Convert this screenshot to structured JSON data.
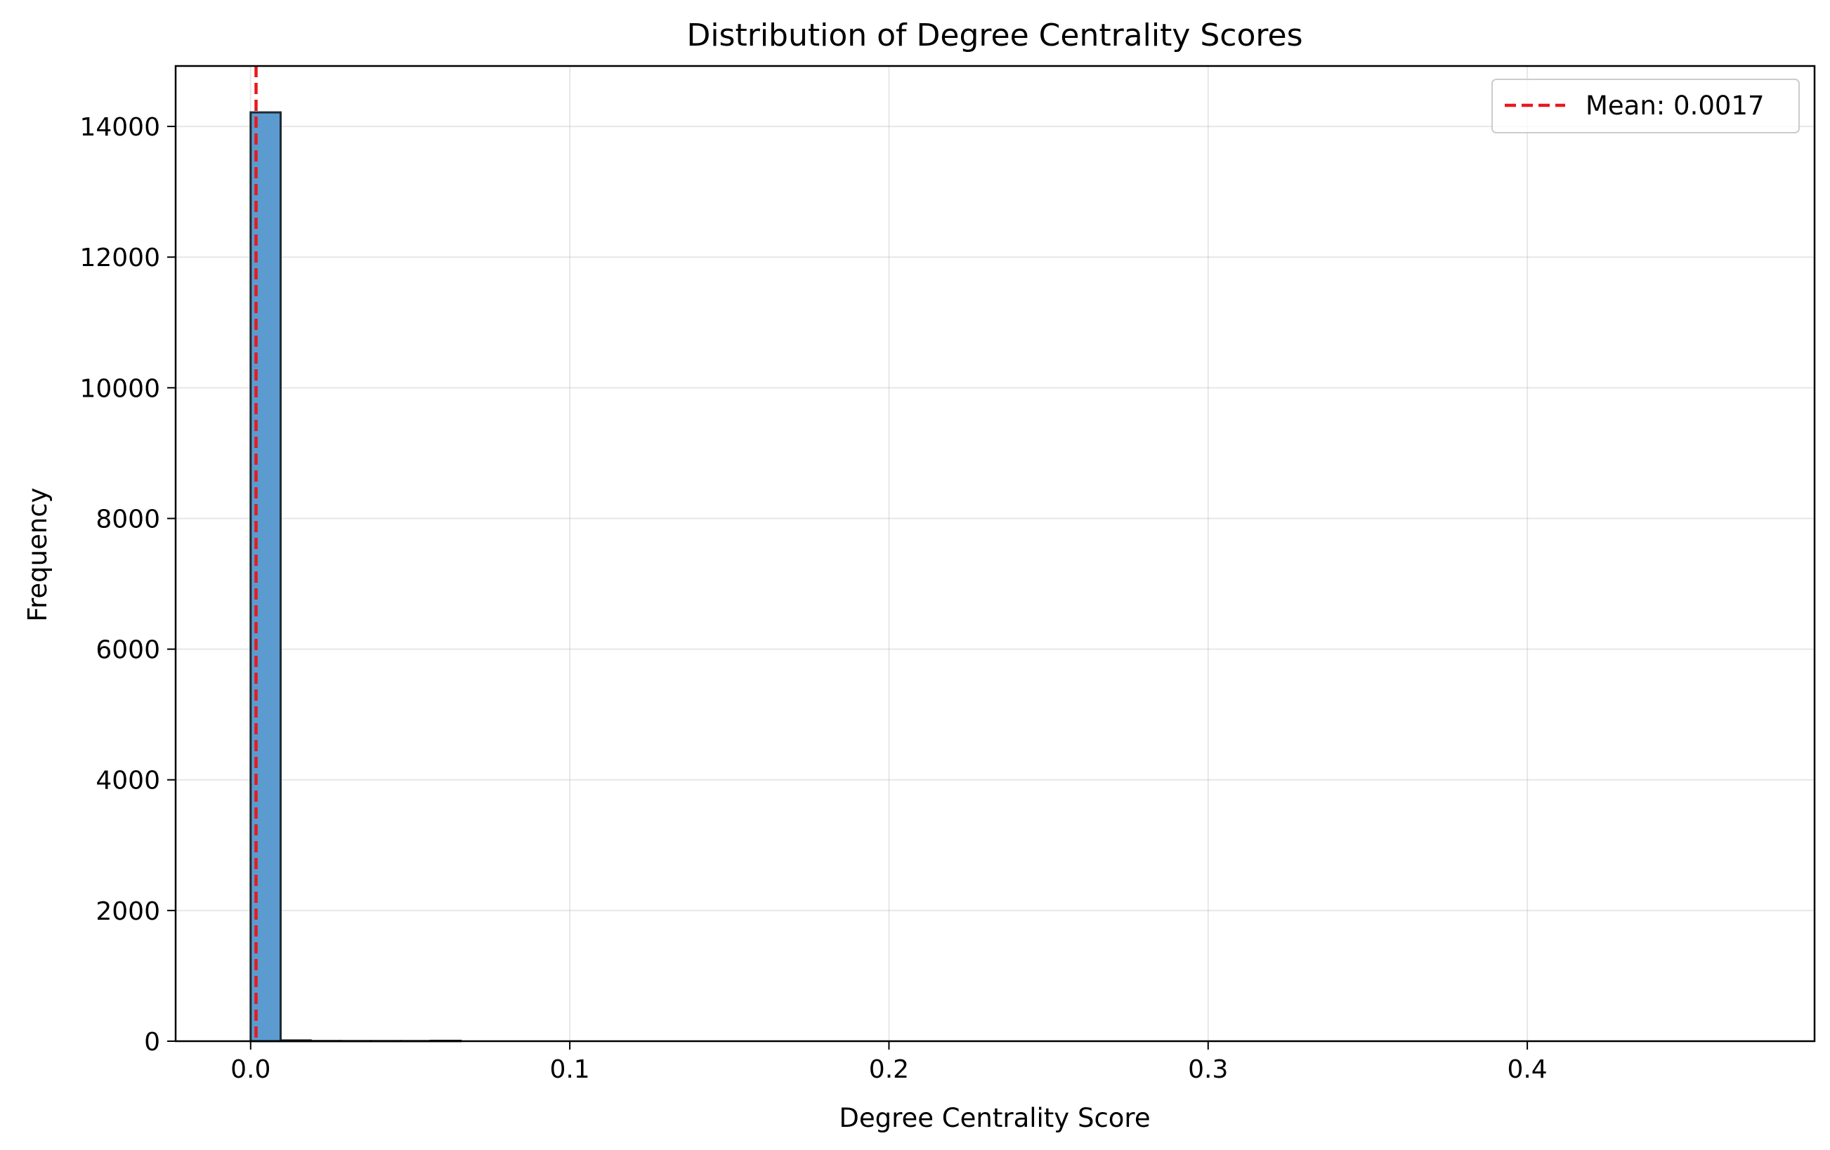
{
  "chart_data": {
    "type": "bar",
    "title": "Distribution of Degree Centrality Scores",
    "xlabel": "Degree Centrality Score",
    "ylabel": "Frequency",
    "xlim": [
      -0.0235,
      0.49
    ],
    "ylim": [
      0,
      14925
    ],
    "x_ticks": [
      0.0,
      0.1,
      0.2,
      0.3,
      0.4
    ],
    "x_tick_labels": [
      "0.0",
      "0.1",
      "0.2",
      "0.3",
      "0.4"
    ],
    "y_ticks": [
      0,
      2000,
      4000,
      6000,
      8000,
      10000,
      12000,
      14000
    ],
    "y_tick_labels": [
      "0",
      "2000",
      "4000",
      "6000",
      "8000",
      "10000",
      "12000",
      "14000"
    ],
    "grid": true,
    "legend_position": "upper right",
    "bins": [
      {
        "x0": 0.0,
        "x1": 0.0094,
        "count": 14215
      },
      {
        "x0": 0.0094,
        "x1": 0.0188,
        "count": 12
      },
      {
        "x0": 0.0188,
        "x1": 0.0282,
        "count": 3
      },
      {
        "x0": 0.0282,
        "x1": 0.0376,
        "count": 2
      },
      {
        "x0": 0.0376,
        "x1": 0.047,
        "count": 2
      },
      {
        "x0": 0.047,
        "x1": 0.0564,
        "count": 2
      },
      {
        "x0": 0.0564,
        "x1": 0.0658,
        "count": 6
      },
      {
        "x0": 0.0658,
        "x1": 0.4674,
        "count": 0
      }
    ],
    "bar_color": "#5b9bd0",
    "bar_edge_color": "#1f2a33",
    "mean_line": {
      "x": 0.0017,
      "label": "Mean: 0.0017",
      "color": "#e8191c",
      "style": "dashed"
    }
  }
}
